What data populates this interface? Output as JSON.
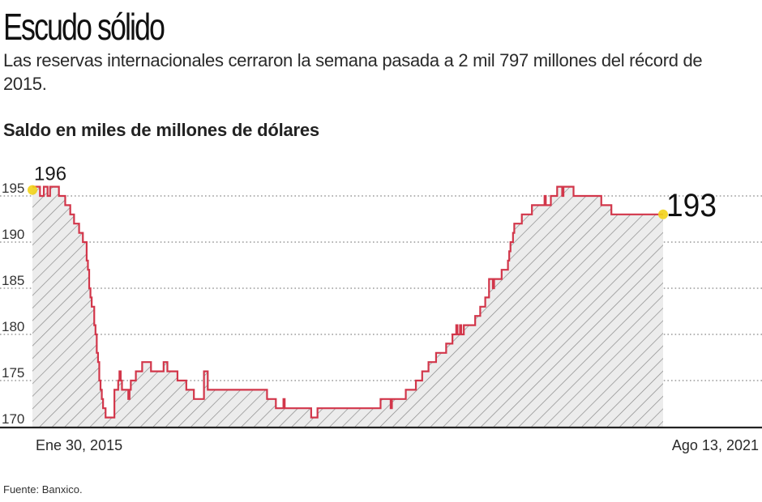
{
  "header": {
    "title": "Escudo sólido",
    "subtitle": "Las reservas internacionales cerraron la semana pasada a 2 mil 797 millones del récord de 2015.",
    "axis_title": "Saldo en miles de millones de dólares"
  },
  "footer": {
    "source": "Fuente: Banxico."
  },
  "colors": {
    "line": "#d2364a",
    "area_fill": "#ececec",
    "hatch": "#8a8a8a",
    "marker": "#f2d31b",
    "grid": "#9a9a9a",
    "baseline": "#222222"
  },
  "chart_data": {
    "type": "area",
    "style": "step",
    "title": "Saldo en miles de millones de dólares",
    "xlabel": "",
    "ylabel": "",
    "x_start_label": "Ene 30, 2015",
    "x_end_label": "Ago 13, 2021",
    "ylim": [
      170,
      196
    ],
    "yticks": [
      170,
      175,
      180,
      185,
      190,
      195
    ],
    "ytick_labels": [
      "170",
      "175",
      "180",
      "185",
      "190",
      "195"
    ],
    "grid": true,
    "grid_style": "dotted-horizontal",
    "annotations": [
      {
        "label": "196",
        "at": "start",
        "value": 196
      },
      {
        "label": "193",
        "at": "end",
        "value": 193
      }
    ],
    "x_unit": "fraction of period (0 = Ene 30, 2015, 1 = Ago 13, 2021)",
    "points": [
      [
        0.0,
        196
      ],
      [
        0.01,
        196
      ],
      [
        0.012,
        195
      ],
      [
        0.016,
        195
      ],
      [
        0.018,
        196
      ],
      [
        0.022,
        196
      ],
      [
        0.024,
        195
      ],
      [
        0.026,
        195
      ],
      [
        0.028,
        196
      ],
      [
        0.04,
        196
      ],
      [
        0.042,
        195
      ],
      [
        0.05,
        195
      ],
      [
        0.052,
        194
      ],
      [
        0.058,
        194
      ],
      [
        0.06,
        193
      ],
      [
        0.064,
        193
      ],
      [
        0.066,
        192
      ],
      [
        0.072,
        192
      ],
      [
        0.074,
        191
      ],
      [
        0.078,
        191
      ],
      [
        0.08,
        190
      ],
      [
        0.084,
        190
      ],
      [
        0.086,
        188
      ],
      [
        0.088,
        187
      ],
      [
        0.09,
        185
      ],
      [
        0.092,
        184
      ],
      [
        0.094,
        183
      ],
      [
        0.098,
        181
      ],
      [
        0.1,
        180
      ],
      [
        0.102,
        178
      ],
      [
        0.104,
        177
      ],
      [
        0.106,
        175
      ],
      [
        0.108,
        174
      ],
      [
        0.11,
        173
      ],
      [
        0.112,
        172
      ],
      [
        0.116,
        171
      ],
      [
        0.128,
        171
      ],
      [
        0.13,
        174
      ],
      [
        0.134,
        174
      ],
      [
        0.136,
        175
      ],
      [
        0.138,
        176
      ],
      [
        0.14,
        175
      ],
      [
        0.142,
        174
      ],
      [
        0.15,
        174
      ],
      [
        0.152,
        173
      ],
      [
        0.154,
        174
      ],
      [
        0.156,
        175
      ],
      [
        0.162,
        175
      ],
      [
        0.164,
        176
      ],
      [
        0.172,
        176
      ],
      [
        0.174,
        177
      ],
      [
        0.186,
        177
      ],
      [
        0.188,
        176
      ],
      [
        0.206,
        176
      ],
      [
        0.208,
        177
      ],
      [
        0.212,
        177
      ],
      [
        0.214,
        176
      ],
      [
        0.228,
        176
      ],
      [
        0.23,
        175
      ],
      [
        0.242,
        175
      ],
      [
        0.244,
        174
      ],
      [
        0.254,
        174
      ],
      [
        0.256,
        173
      ],
      [
        0.27,
        173
      ],
      [
        0.272,
        176
      ],
      [
        0.276,
        176
      ],
      [
        0.278,
        174
      ],
      [
        0.37,
        174
      ],
      [
        0.372,
        173
      ],
      [
        0.384,
        173
      ],
      [
        0.386,
        172
      ],
      [
        0.396,
        172
      ],
      [
        0.398,
        173
      ],
      [
        0.4,
        172
      ],
      [
        0.44,
        172
      ],
      [
        0.442,
        171
      ],
      [
        0.45,
        171
      ],
      [
        0.452,
        172
      ],
      [
        0.55,
        172
      ],
      [
        0.552,
        173
      ],
      [
        0.566,
        173
      ],
      [
        0.568,
        172
      ],
      [
        0.57,
        173
      ],
      [
        0.59,
        173
      ],
      [
        0.592,
        174
      ],
      [
        0.606,
        174
      ],
      [
        0.608,
        175
      ],
      [
        0.616,
        175
      ],
      [
        0.618,
        176
      ],
      [
        0.626,
        176
      ],
      [
        0.628,
        177
      ],
      [
        0.638,
        177
      ],
      [
        0.64,
        178
      ],
      [
        0.654,
        178
      ],
      [
        0.656,
        179
      ],
      [
        0.664,
        179
      ],
      [
        0.666,
        180
      ],
      [
        0.67,
        180
      ],
      [
        0.672,
        181
      ],
      [
        0.674,
        180
      ],
      [
        0.678,
        181
      ],
      [
        0.68,
        180
      ],
      [
        0.684,
        181
      ],
      [
        0.7,
        181
      ],
      [
        0.702,
        182
      ],
      [
        0.708,
        182
      ],
      [
        0.71,
        183
      ],
      [
        0.716,
        183
      ],
      [
        0.718,
        184
      ],
      [
        0.722,
        184
      ],
      [
        0.724,
        186
      ],
      [
        0.728,
        186
      ],
      [
        0.73,
        185
      ],
      [
        0.732,
        186
      ],
      [
        0.742,
        186
      ],
      [
        0.744,
        187
      ],
      [
        0.752,
        187
      ],
      [
        0.754,
        188
      ],
      [
        0.756,
        189
      ],
      [
        0.758,
        190
      ],
      [
        0.762,
        191
      ],
      [
        0.764,
        192
      ],
      [
        0.774,
        192
      ],
      [
        0.776,
        193
      ],
      [
        0.79,
        193
      ],
      [
        0.792,
        194
      ],
      [
        0.81,
        194
      ],
      [
        0.812,
        195
      ],
      [
        0.814,
        194
      ],
      [
        0.82,
        194
      ],
      [
        0.822,
        195
      ],
      [
        0.83,
        195
      ],
      [
        0.832,
        196
      ],
      [
        0.838,
        196
      ],
      [
        0.84,
        195
      ],
      [
        0.842,
        196
      ],
      [
        0.856,
        196
      ],
      [
        0.858,
        195
      ],
      [
        0.9,
        195
      ],
      [
        0.902,
        194
      ],
      [
        0.916,
        194
      ],
      [
        0.918,
        193
      ],
      [
        1.0,
        193
      ]
    ]
  }
}
